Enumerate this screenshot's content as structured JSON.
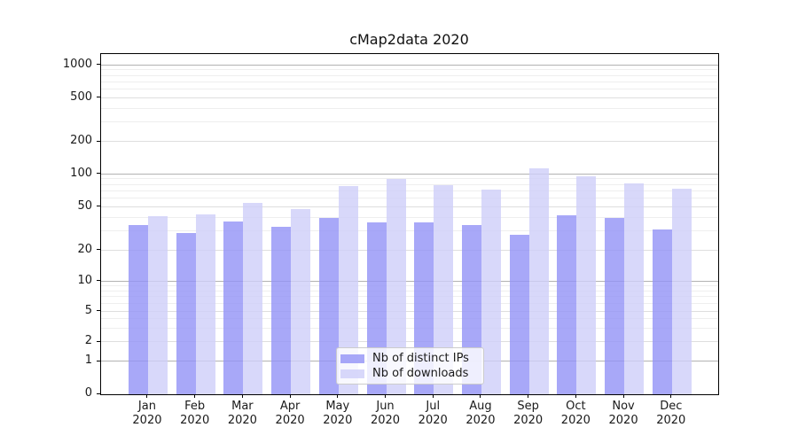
{
  "title": "cMap2data 2020",
  "chart_data": {
    "type": "bar",
    "title": "cMap2data 2020",
    "categories": [
      "Jan 2020",
      "Feb 2020",
      "Mar 2020",
      "Apr 2020",
      "May 2020",
      "Jun 2020",
      "Jul 2020",
      "Aug 2020",
      "Sep 2020",
      "Oct 2020",
      "Nov 2020",
      "Dec 2020"
    ],
    "months": [
      "Jan",
      "Feb",
      "Mar",
      "Apr",
      "May",
      "Jun",
      "Jul",
      "Aug",
      "Sep",
      "Oct",
      "Nov",
      "Dec"
    ],
    "year_label": "2020",
    "series": [
      {
        "name": "Nb of distinct IPs",
        "color": "rgba(146,146,246,0.8)",
        "values": [
          34,
          29,
          37,
          33,
          40,
          36,
          36,
          34,
          28,
          42,
          40,
          31
        ]
      },
      {
        "name": "Nb of downloads",
        "color": "rgba(206,206,249,0.8)",
        "values": [
          41,
          43,
          55,
          48,
          78,
          91,
          80,
          73,
          114,
          96,
          83,
          74
        ]
      }
    ],
    "yaxis": {
      "scale": "symlog",
      "ticks": [
        0,
        1,
        2,
        5,
        10,
        20,
        50,
        100,
        200,
        500,
        1000
      ],
      "minor_gridlines": [
        3,
        4,
        6,
        7,
        8,
        9,
        30,
        40,
        60,
        70,
        80,
        90,
        300,
        400,
        600,
        700,
        800,
        900
      ]
    },
    "xlabel": "",
    "ylabel": "",
    "grid": "on",
    "legend_position": "lower center"
  }
}
